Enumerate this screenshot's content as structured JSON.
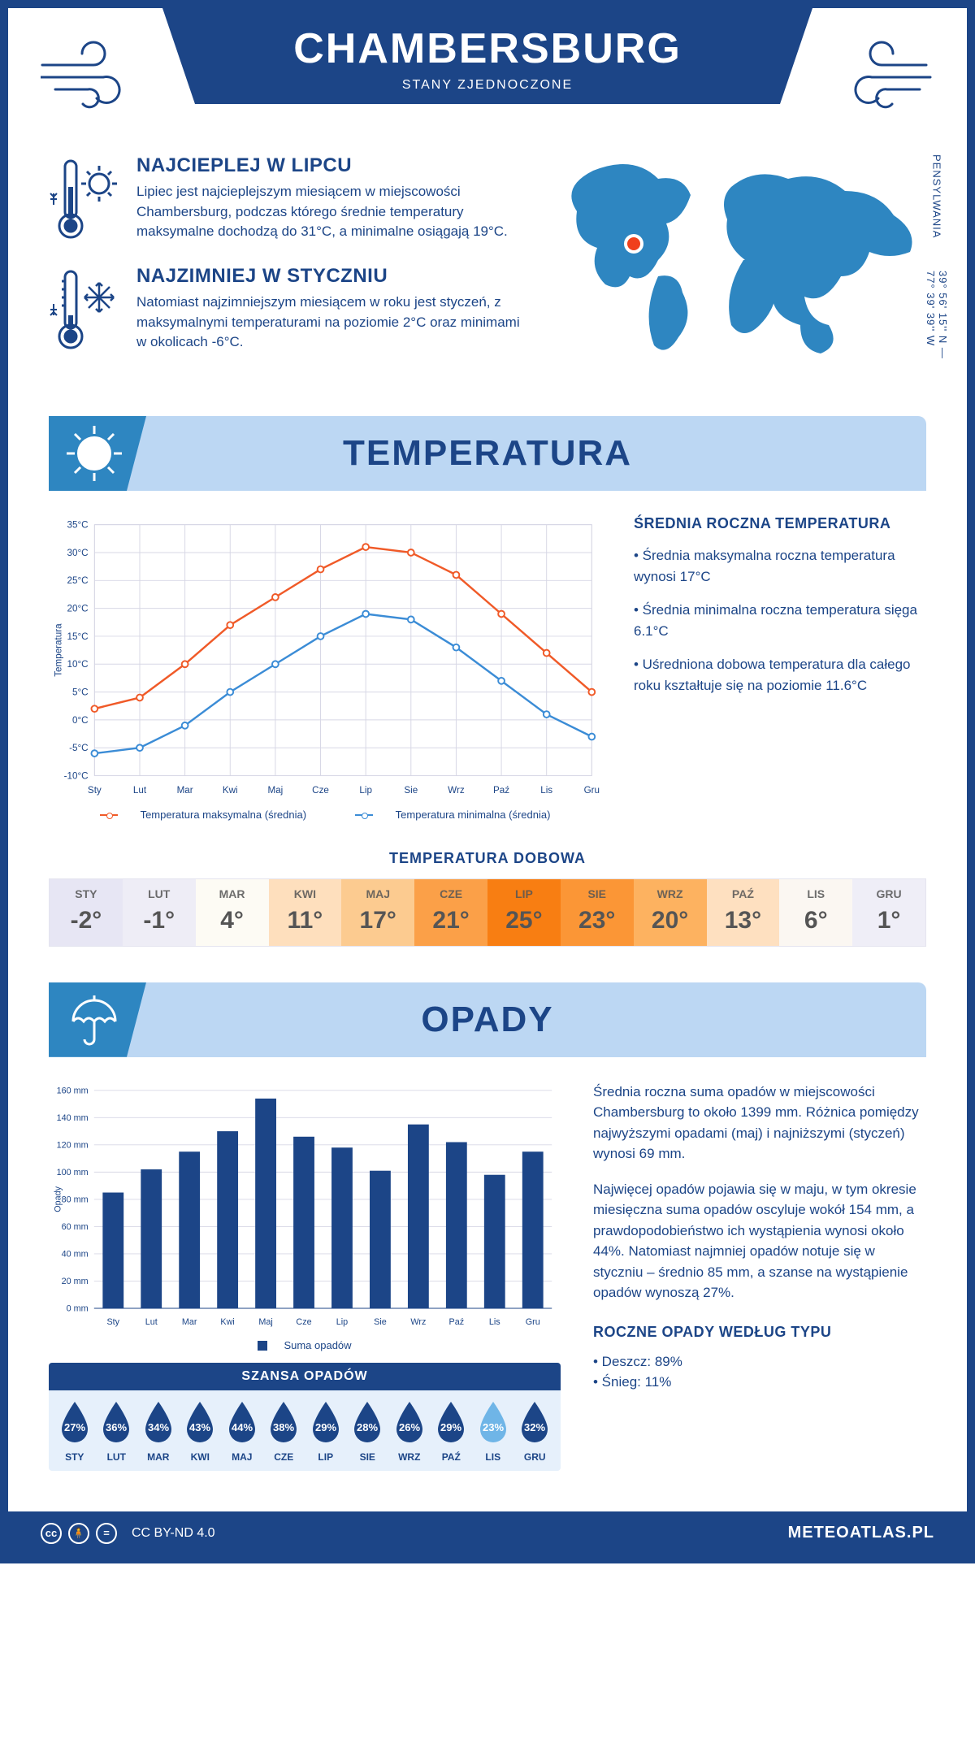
{
  "colors": {
    "primary": "#1c4587",
    "accent": "#2e86c1",
    "header_bg": "#bcd7f3",
    "temp_max_line": "#f05a28",
    "temp_min_line": "#3b8cd6",
    "bar_fill": "#1c4587",
    "grid": "#d7d7e5",
    "marker": "#f0401c"
  },
  "header": {
    "city": "CHAMBERSBURG",
    "country": "STANY ZJEDNOCZONE"
  },
  "coords": {
    "region": "PENSYLWANIA",
    "lat_lon": "39° 56' 15'' N — 77° 39' 39'' W"
  },
  "facts": {
    "hot": {
      "title": "NAJCIEPLEJ W LIPCU",
      "text": "Lipiec jest najcieplejszym miesiącem w miejscowości Chambersburg, podczas którego średnie temperatury maksymalne dochodzą do 31°C, a minimalne osiągają 19°C."
    },
    "cold": {
      "title": "NAJZIMNIEJ W STYCZNIU",
      "text": "Natomiast najzimniejszym miesiącem w roku jest styczeń, z maksymalnymi temperaturami na poziomie 2°C oraz minimami w okolicach -6°C."
    }
  },
  "sections": {
    "temp_title": "TEMPERATURA",
    "precip_title": "OPADY"
  },
  "temperature_chart": {
    "type": "line",
    "ylabel": "Temperatura",
    "months": [
      "Sty",
      "Lut",
      "Mar",
      "Kwi",
      "Maj",
      "Cze",
      "Lip",
      "Sie",
      "Wrz",
      "Paź",
      "Lis",
      "Gru"
    ],
    "yticks": [
      -10,
      -5,
      0,
      5,
      10,
      15,
      20,
      25,
      30,
      35
    ],
    "ytick_labels": [
      "-10°C",
      "-5°C",
      "0°C",
      "5°C",
      "10°C",
      "15°C",
      "20°C",
      "25°C",
      "30°C",
      "35°C"
    ],
    "series_max": [
      2,
      4,
      10,
      17,
      22,
      27,
      31,
      30,
      26,
      19,
      12,
      5
    ],
    "series_min": [
      -6,
      -5,
      -1,
      5,
      10,
      15,
      19,
      18,
      13,
      7,
      1,
      -3
    ],
    "legend_max": "Temperatura maksymalna (średnia)",
    "legend_min": "Temperatura minimalna (średnia)"
  },
  "temperature_side": {
    "title": "ŚREDNIA ROCZNA TEMPERATURA",
    "b1": "• Średnia maksymalna roczna temperatura wynosi 17°C",
    "b2": "• Średnia minimalna roczna temperatura sięga 6.1°C",
    "b3": "• Uśredniona dobowa temperatura dla całego roku kształtuje się na poziomie 11.6°C"
  },
  "daily_temp": {
    "title": "TEMPERATURA DOBOWA",
    "months": [
      "STY",
      "LUT",
      "MAR",
      "KWI",
      "MAJ",
      "CZE",
      "LIP",
      "SIE",
      "WRZ",
      "PAŹ",
      "LIS",
      "GRU"
    ],
    "values": [
      "-2°",
      "-1°",
      "4°",
      "11°",
      "17°",
      "21°",
      "25°",
      "23°",
      "20°",
      "13°",
      "6°",
      "1°"
    ],
    "cell_colors": [
      "#e7e6f4",
      "#eeedf6",
      "#fdfbf4",
      "#fedfbd",
      "#fccb90",
      "#fba048",
      "#f87e12",
      "#fb9636",
      "#fdb260",
      "#fee0c0",
      "#fbf7f2",
      "#efeef7"
    ]
  },
  "precip_chart": {
    "type": "bar",
    "ylabel": "Opady",
    "months": [
      "Sty",
      "Lut",
      "Mar",
      "Kwi",
      "Maj",
      "Cze",
      "Lip",
      "Sie",
      "Wrz",
      "Paź",
      "Lis",
      "Gru"
    ],
    "yticks": [
      0,
      20,
      40,
      60,
      80,
      100,
      120,
      140,
      160
    ],
    "ytick_labels": [
      "0 mm",
      "20 mm",
      "40 mm",
      "60 mm",
      "80 mm",
      "100 mm",
      "120 mm",
      "140 mm",
      "160 mm"
    ],
    "values": [
      85,
      102,
      115,
      130,
      154,
      126,
      118,
      101,
      135,
      122,
      98,
      115
    ],
    "legend": "Suma opadów"
  },
  "precip_side": {
    "p1": "Średnia roczna suma opadów w miejscowości Chambersburg to około 1399 mm. Różnica pomiędzy najwyższymi opadami (maj) i najniższymi (styczeń) wynosi 69 mm.",
    "p2": "Najwięcej opadów pojawia się w maju, w tym okresie miesięczna suma opadów oscyluje wokół 154 mm, a prawdopodobieństwo ich wystąpienia wynosi około 44%. Natomiast najmniej opadów notuje się w styczniu – średnio 85 mm, a szanse na wystąpienie opadów wynoszą 27%.",
    "type_title": "ROCZNE OPADY WEDŁUG TYPU",
    "rain": "• Deszcz: 89%",
    "snow": "• Śnieg: 11%"
  },
  "chance": {
    "title": "SZANSA OPADÓW",
    "months": [
      "STY",
      "LUT",
      "MAR",
      "KWI",
      "MAJ",
      "CZE",
      "LIP",
      "SIE",
      "WRZ",
      "PAŹ",
      "LIS",
      "GRU"
    ],
    "values": [
      "27%",
      "36%",
      "34%",
      "43%",
      "44%",
      "38%",
      "29%",
      "28%",
      "26%",
      "29%",
      "23%",
      "32%"
    ],
    "drop_colors": [
      "#1c4587",
      "#1c4587",
      "#1c4587",
      "#1c4587",
      "#1c4587",
      "#1c4587",
      "#1c4587",
      "#1c4587",
      "#1c4587",
      "#1c4587",
      "#6fb5e7",
      "#1c4587"
    ]
  },
  "footer": {
    "license": "CC BY-ND 4.0",
    "site": "METEOATLAS.PL"
  }
}
